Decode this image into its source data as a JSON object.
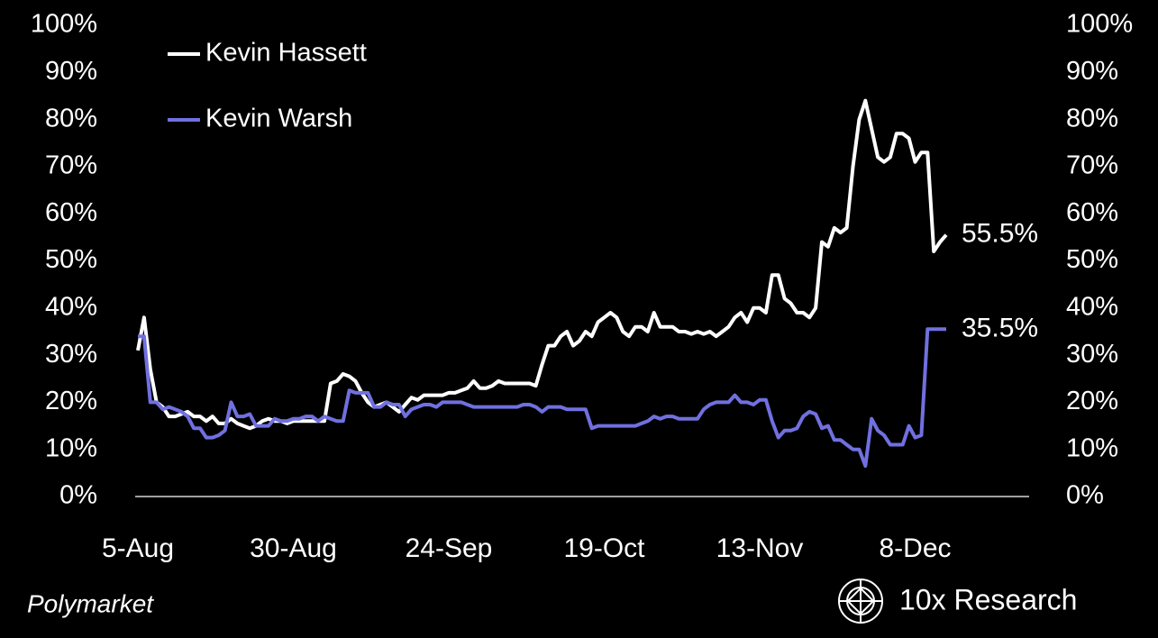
{
  "chart_data": {
    "type": "line",
    "source": "Polymarket",
    "brand": "10x Research",
    "legend": "upper left",
    "x": [
      "5-Aug",
      "6-Aug",
      "7-Aug",
      "8-Aug",
      "9-Aug",
      "10-Aug",
      "11-Aug",
      "12-Aug",
      "13-Aug",
      "14-Aug",
      "15-Aug",
      "16-Aug",
      "17-Aug",
      "18-Aug",
      "19-Aug",
      "20-Aug",
      "21-Aug",
      "22-Aug",
      "23-Aug",
      "24-Aug",
      "25-Aug",
      "26-Aug",
      "27-Aug",
      "28-Aug",
      "29-Aug",
      "30-Aug",
      "31-Aug",
      "1-Sep",
      "2-Sep",
      "3-Sep",
      "4-Sep",
      "5-Sep",
      "6-Sep",
      "7-Sep",
      "8-Sep",
      "9-Sep",
      "10-Sep",
      "11-Sep",
      "12-Sep",
      "13-Sep",
      "14-Sep",
      "15-Sep",
      "16-Sep",
      "17-Sep",
      "18-Sep",
      "19-Sep",
      "20-Sep",
      "21-Sep",
      "22-Sep",
      "23-Sep",
      "24-Sep",
      "25-Sep",
      "26-Sep",
      "27-Sep",
      "28-Sep",
      "29-Sep",
      "30-Sep",
      "1-Oct",
      "2-Oct",
      "3-Oct",
      "4-Oct",
      "5-Oct",
      "6-Oct",
      "7-Oct",
      "8-Oct",
      "9-Oct",
      "10-Oct",
      "11-Oct",
      "12-Oct",
      "13-Oct",
      "14-Oct",
      "15-Oct",
      "16-Oct",
      "17-Oct",
      "18-Oct",
      "19-Oct",
      "20-Oct",
      "21-Oct",
      "22-Oct",
      "23-Oct",
      "24-Oct",
      "25-Oct",
      "26-Oct",
      "27-Oct",
      "28-Oct",
      "29-Oct",
      "30-Oct",
      "31-Oct",
      "1-Nov",
      "2-Nov",
      "3-Nov",
      "4-Nov",
      "5-Nov",
      "6-Nov",
      "7-Nov",
      "8-Nov",
      "9-Nov",
      "10-Nov",
      "11-Nov",
      "12-Nov",
      "13-Nov",
      "14-Nov",
      "15-Nov",
      "16-Nov",
      "17-Nov",
      "18-Nov",
      "19-Nov",
      "20-Nov",
      "21-Nov",
      "22-Nov",
      "23-Nov",
      "24-Nov",
      "25-Nov",
      "26-Nov",
      "27-Nov",
      "28-Nov",
      "29-Nov",
      "30-Nov",
      "1-Dec",
      "2-Dec",
      "3-Dec",
      "4-Dec",
      "5-Dec",
      "6-Dec",
      "7-Dec",
      "8-Dec",
      "9-Dec",
      "10-Dec",
      "11-Dec",
      "12-Dec",
      "13-Dec"
    ],
    "xticks": [
      "5-Aug",
      "30-Aug",
      "24-Sep",
      "19-Oct",
      "13-Nov",
      "8-Dec"
    ],
    "ylim": [
      0,
      100
    ],
    "yticks": [
      {
        "value": 0,
        "label": "0%"
      },
      {
        "value": 10,
        "label": "10%"
      },
      {
        "value": 20,
        "label": "20%"
      },
      {
        "value": 30,
        "label": "30%"
      },
      {
        "value": 40,
        "label": "40%"
      },
      {
        "value": 50,
        "label": "50%"
      },
      {
        "value": 60,
        "label": "60%"
      },
      {
        "value": 70,
        "label": "70%"
      },
      {
        "value": 80,
        "label": "80%"
      },
      {
        "value": 90,
        "label": "90%"
      },
      {
        "value": 100,
        "label": "100%"
      }
    ],
    "series": [
      {
        "name": "Kevin Hassett",
        "color": "#ffffff",
        "end_label": "55.5%",
        "values": [
          31,
          38,
          27,
          20,
          19,
          17,
          17,
          17.5,
          18,
          17,
          17,
          16,
          17,
          15.5,
          15.5,
          16.5,
          15.5,
          15,
          14.5,
          15,
          16,
          16.5,
          16,
          16,
          15.5,
          16,
          16,
          16,
          16,
          16,
          16,
          24,
          24.5,
          26,
          25.5,
          24.5,
          22,
          20,
          19,
          19.5,
          20,
          19,
          18,
          19.5,
          21,
          20.5,
          21.5,
          21.5,
          21.5,
          21.5,
          22,
          22,
          22.5,
          23,
          24.5,
          23,
          23,
          23.5,
          24.5,
          24,
          24,
          24,
          24,
          24,
          23.5,
          28,
          32,
          32,
          34,
          35,
          32,
          33,
          35,
          34,
          37,
          38,
          39,
          38,
          35,
          34,
          36,
          36,
          35,
          39,
          36,
          36,
          36,
          35,
          35,
          34.5,
          35,
          34.5,
          35,
          34,
          35,
          36,
          38,
          39,
          37,
          40,
          40,
          39,
          47,
          47,
          42,
          41,
          39,
          39,
          38,
          40,
          54,
          53,
          57,
          56,
          57,
          70,
          80,
          84,
          78,
          72,
          71,
          72,
          77,
          77,
          76,
          71,
          73,
          73,
          52,
          54,
          55.5
        ]
      },
      {
        "name": "Kevin Warsh",
        "color": "#7070e0",
        "end_label": "35.5%",
        "values": [
          34,
          34,
          20,
          20,
          18.5,
          19,
          18.5,
          18,
          17,
          14.5,
          14.5,
          12.5,
          12.5,
          13,
          14,
          20,
          17,
          17,
          17.5,
          15,
          15,
          15,
          16.5,
          16,
          16,
          16.5,
          16.5,
          17,
          17,
          16,
          17,
          16.5,
          16,
          16,
          22.5,
          22,
          22,
          22,
          19,
          19,
          20,
          19.5,
          19.5,
          17,
          18.5,
          19,
          19.5,
          19.5,
          19,
          20,
          20,
          20,
          20,
          19.5,
          19,
          19,
          19,
          19,
          19,
          19,
          19,
          19,
          19.5,
          19.5,
          19,
          18,
          19,
          19,
          19,
          18.5,
          18.5,
          18.5,
          18.5,
          14.5,
          15,
          15,
          15,
          15,
          15,
          15,
          15,
          15.5,
          16,
          17,
          16.5,
          17,
          17,
          16.5,
          16.5,
          16.5,
          16.5,
          18.5,
          19.5,
          20,
          20,
          20,
          21.5,
          20,
          20,
          19.5,
          20.5,
          20.5,
          16,
          12.5,
          14,
          14,
          14.5,
          17,
          18,
          17.5,
          14.5,
          15,
          12,
          12,
          11,
          10,
          10,
          6.5,
          16.5,
          14,
          13,
          11,
          11,
          11,
          15,
          12.5,
          13,
          35.5,
          35.5,
          35.5,
          35.5
        ]
      }
    ]
  }
}
